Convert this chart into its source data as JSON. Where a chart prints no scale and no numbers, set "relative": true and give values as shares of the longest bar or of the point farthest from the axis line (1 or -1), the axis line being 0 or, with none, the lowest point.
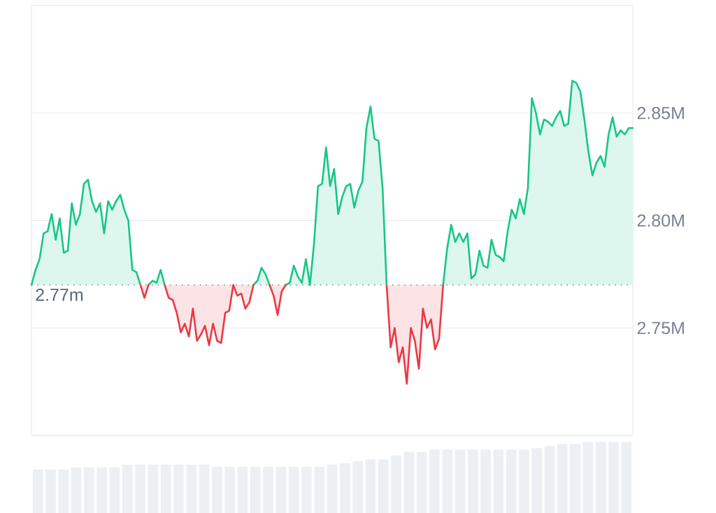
{
  "chart_data": [
    {
      "type": "area",
      "ylim": [
        2.7,
        2.9
      ],
      "yticks": [
        {
          "value": 2.7,
          "label": null
        },
        {
          "value": 2.75,
          "label": "2.75M"
        },
        {
          "value": 2.8,
          "label": "2.80M"
        },
        {
          "value": 2.85,
          "label": "2.85M"
        },
        {
          "value": 2.9,
          "label": null
        }
      ],
      "tick_labels": "y",
      "grid": "y",
      "ref_lines": [
        {
          "axis": "y",
          "value": 2.77,
          "label": "2.77m",
          "color": "#9aa0a6",
          "line_style": "dotted"
        }
      ],
      "categories": [
        null,
        null,
        null,
        null,
        null,
        null,
        null,
        null,
        null,
        null,
        null,
        null,
        null,
        null,
        null,
        null,
        null,
        null,
        null,
        null,
        null,
        null,
        null,
        null,
        null,
        null,
        null,
        null,
        null,
        null,
        null,
        null,
        null,
        null,
        null,
        null,
        null,
        null,
        null,
        null,
        null,
        null,
        null,
        null,
        null,
        null,
        null,
        null,
        null,
        null,
        null,
        null,
        null,
        null,
        null,
        null,
        null,
        null,
        null,
        null,
        null,
        null,
        null,
        null,
        null,
        null,
        null,
        null,
        null,
        null,
        null,
        null,
        null,
        null,
        null,
        null,
        null,
        null,
        null,
        null,
        null,
        null,
        null,
        null,
        null,
        null,
        null,
        null,
        null,
        null,
        null,
        null,
        null,
        null,
        null,
        null,
        null,
        null,
        null,
        null,
        null,
        null,
        null,
        null,
        null,
        null,
        null,
        null,
        null,
        null,
        null,
        null,
        null,
        null,
        null,
        null,
        null,
        null,
        null,
        null,
        null,
        null,
        null,
        null,
        null,
        null,
        null,
        null,
        null,
        null,
        null,
        null,
        null,
        null,
        null,
        null,
        null,
        null,
        null,
        null,
        null,
        null,
        null,
        null,
        null,
        null,
        null,
        null,
        null,
        null
      ],
      "series": [
        {
          "color": "#16c784",
          "values": [
            2.77,
            2.777,
            2.782,
            2.794,
            2.795,
            2.803,
            2.791,
            2.801,
            2.785,
            2.786,
            2.808,
            2.798,
            2.803,
            2.817,
            2.819,
            2.809,
            2.804,
            2.808,
            2.794,
            2.809,
            2.805,
            2.809,
            2.812,
            2.805,
            2.8,
            2.777,
            2.776,
            2.77,
            null,
            2.77,
            2.772,
            2.771,
            2.777,
            2.77,
            null,
            null,
            null,
            null,
            null,
            null,
            null,
            null,
            null,
            null,
            null,
            null,
            null,
            null,
            null,
            null,
            null,
            null,
            null,
            null,
            null,
            2.77,
            2.772,
            2.778,
            2.775,
            2.77,
            null,
            null,
            null,
            2.77,
            2.771,
            2.779,
            2.774,
            2.771,
            2.782,
            2.77,
            2.789,
            2.816,
            2.817,
            2.834,
            2.816,
            2.824,
            2.803,
            2.811,
            2.816,
            2.817,
            2.806,
            2.814,
            2.818,
            2.843,
            2.853,
            2.838,
            2.837,
            2.815,
            2.77,
            null,
            null,
            null,
            null,
            null,
            null,
            null,
            null,
            null,
            null,
            null,
            null,
            null,
            2.77,
            2.787,
            2.798,
            2.79,
            2.794,
            2.79,
            2.794,
            2.773,
            2.775,
            2.786,
            2.779,
            2.778,
            2.791,
            2.784,
            2.783,
            2.781,
            2.795,
            2.805,
            2.801,
            2.81,
            2.803,
            2.815,
            2.857,
            2.85,
            2.84,
            2.847,
            2.846,
            2.844,
            2.848,
            2.851,
            2.844,
            2.845,
            2.865,
            2.864,
            2.86,
            2.847,
            2.832,
            2.821,
            2.827,
            2.83,
            2.825,
            2.84,
            2.848,
            2.839,
            2.842,
            2.84,
            2.843,
            2.843
          ]
        },
        {
          "color": "#ea3943",
          "values": [
            null,
            null,
            null,
            null,
            null,
            null,
            null,
            null,
            null,
            null,
            null,
            null,
            null,
            null,
            null,
            null,
            null,
            null,
            null,
            null,
            null,
            null,
            null,
            null,
            null,
            null,
            null,
            2.77,
            2.764,
            2.77,
            null,
            null,
            null,
            2.77,
            2.764,
            2.763,
            2.757,
            2.748,
            2.752,
            2.746,
            2.759,
            2.744,
            2.747,
            2.751,
            2.742,
            2.752,
            2.744,
            2.743,
            2.757,
            2.758,
            2.77,
            2.765,
            2.766,
            2.759,
            2.762,
            2.77,
            null,
            null,
            null,
            2.77,
            2.765,
            2.756,
            2.767,
            2.77,
            null,
            null,
            null,
            null,
            null,
            null,
            null,
            null,
            null,
            null,
            null,
            null,
            null,
            null,
            null,
            null,
            null,
            null,
            null,
            null,
            null,
            null,
            null,
            null,
            2.77,
            2.741,
            2.75,
            2.734,
            2.741,
            2.724,
            2.75,
            2.744,
            2.731,
            2.759,
            2.75,
            2.754,
            2.74,
            2.745,
            2.77,
            null,
            null,
            null,
            null,
            null,
            null,
            null,
            null,
            null,
            null,
            null,
            null,
            null,
            null,
            null,
            null,
            null,
            null,
            null,
            null,
            null,
            null,
            null,
            null,
            null,
            null,
            null,
            null,
            null,
            null,
            null,
            null,
            null,
            null,
            null,
            null,
            null,
            null,
            null,
            null,
            null,
            null,
            null,
            null,
            null,
            null,
            null
          ]
        }
      ]
    },
    {
      "type": "bar",
      "relative": true,
      "tick_labels": false,
      "color": "#eceff3",
      "categories": [
        null,
        null,
        null,
        null,
        null,
        null,
        null,
        null,
        null,
        null,
        null,
        null,
        null,
        null,
        null,
        null,
        null,
        null,
        null,
        null,
        null,
        null,
        null,
        null,
        null,
        null,
        null,
        null,
        null,
        null,
        null,
        null,
        null,
        null,
        null,
        null,
        null,
        null,
        null,
        null,
        null,
        null,
        null,
        null,
        null,
        null,
        null
      ],
      "values": [
        0.61,
        0.61,
        0.61,
        0.64,
        0.64,
        0.64,
        0.64,
        0.68,
        0.68,
        0.68,
        0.68,
        0.68,
        0.68,
        0.68,
        0.65,
        0.65,
        0.65,
        0.65,
        0.65,
        0.65,
        0.65,
        0.65,
        0.65,
        0.68,
        0.7,
        0.73,
        0.75,
        0.75,
        0.81,
        0.86,
        0.86,
        0.89,
        0.89,
        0.89,
        0.89,
        0.89,
        0.89,
        0.89,
        0.89,
        0.91,
        0.94,
        0.97,
        0.97,
        1,
        1,
        1,
        1
      ]
    }
  ]
}
